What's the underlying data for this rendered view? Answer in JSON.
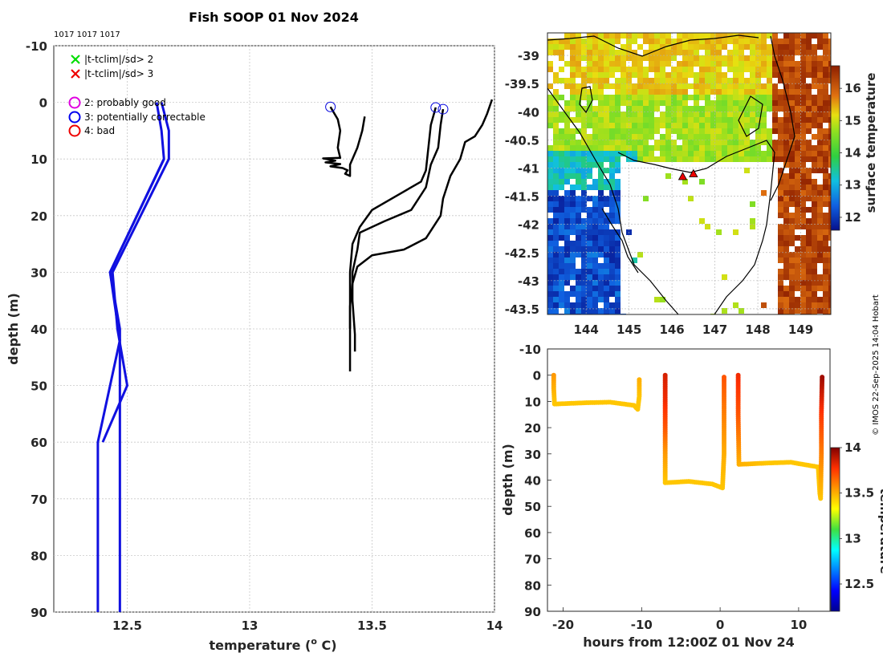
{
  "title": "Fish SOOP 01 Nov 2024",
  "ids_label": "1017 1017 1017",
  "credit": "© IMOS 22-Sep-2025 14:04 Hobart",
  "chart_data": [
    {
      "id": "profile",
      "type": "line",
      "xlabel": "temperature (",
      "xlabel_unit": "o",
      "xlabel_tail": " C)",
      "ylabel": "depth (m)",
      "xlim": [
        12.2,
        14
      ],
      "ylim": [
        -10,
        90
      ],
      "xticks": [
        12.5,
        13,
        13.5,
        14
      ],
      "xtick_labels": [
        "12.5",
        "13",
        "13.5",
        "14"
      ],
      "yticks": [
        -10,
        0,
        10,
        20,
        30,
        40,
        50,
        60,
        70,
        80,
        90
      ],
      "ytick_labels": [
        "-10",
        "0",
        "10",
        "20",
        "30",
        "40",
        "50",
        "60",
        "70",
        "80",
        "90"
      ],
      "legend": [
        {
          "marker": "x",
          "color": "#00dd00",
          "label": "|t-tclim|/sd> 2"
        },
        {
          "marker": "x",
          "color": "#ee0000",
          "label": "|t-tclim|/sd> 3"
        },
        {
          "marker": "o",
          "color": "#e000e0",
          "label": "2: probably good"
        },
        {
          "marker": "o",
          "color": "#0000ee",
          "label": "3: potentially correctable"
        },
        {
          "marker": "o",
          "color": "#ee0000",
          "label": "4: bad"
        }
      ],
      "climatology": [
        {
          "name": "clim-mean",
          "color": "#1010e0",
          "points": [
            [
              12.62,
              0
            ],
            [
              12.64,
              5
            ],
            [
              12.65,
              10
            ],
            [
              12.43,
              30
            ],
            [
              12.47,
              40
            ],
            [
              12.47,
              50
            ],
            [
              12.47,
              60
            ],
            [
              12.47,
              70
            ],
            [
              12.47,
              90
            ]
          ]
        },
        {
          "name": "clim-upper",
          "color": "#1010e0",
          "points": [
            [
              12.64,
              0
            ],
            [
              12.67,
              5
            ],
            [
              12.67,
              10
            ],
            [
              12.44,
              30
            ],
            [
              12.46,
              40
            ],
            [
              12.5,
              50
            ],
            [
              12.4,
              60
            ]
          ]
        },
        {
          "name": "clim-lower",
          "color": "#1010e0",
          "points": [
            [
              12.65,
              10
            ],
            [
              12.43,
              30
            ],
            [
              12.47,
              42
            ],
            [
              12.38,
              60
            ],
            [
              12.38,
              90
            ]
          ]
        }
      ],
      "series": [
        {
          "name": "profile-1",
          "color": "#000000",
          "flag_circle": [
            13.33,
            0.8
          ],
          "points": [
            [
              13.33,
              0.8
            ],
            [
              13.36,
              3
            ],
            [
              13.37,
              5
            ],
            [
              13.36,
              8
            ],
            [
              13.37,
              9.8
            ],
            [
              13.3,
              9.9
            ],
            [
              13.35,
              10.3
            ],
            [
              13.31,
              10.6
            ],
            [
              13.37,
              10.9
            ],
            [
              13.33,
              11.3
            ],
            [
              13.38,
              11.6
            ],
            [
              13.4,
              12
            ],
            [
              13.39,
              12.6
            ],
            [
              13.41,
              13
            ],
            [
              13.41,
              11
            ],
            [
              13.44,
              8
            ],
            [
              13.46,
              5
            ],
            [
              13.47,
              2.5
            ]
          ]
        },
        {
          "name": "profile-2",
          "color": "#000000",
          "flag_circle": [
            13.76,
            0.9
          ],
          "points": [
            [
              13.76,
              0.9
            ],
            [
              13.74,
              4
            ],
            [
              13.73,
              8
            ],
            [
              13.72,
              12
            ],
            [
              13.7,
              14
            ],
            [
              13.5,
              19
            ],
            [
              13.45,
              22
            ],
            [
              13.42,
              25
            ],
            [
              13.41,
              30
            ],
            [
              13.41,
              35
            ],
            [
              13.41,
              47.5
            ]
          ]
        },
        {
          "name": "profile-3",
          "color": "#000000",
          "flag_circle": [
            13.79,
            1.2
          ],
          "points": [
            [
              13.79,
              1.2
            ],
            [
              13.78,
              4
            ],
            [
              13.77,
              8
            ],
            [
              13.74,
              11
            ],
            [
              13.72,
              15
            ],
            [
              13.66,
              19
            ],
            [
              13.55,
              21
            ],
            [
              13.45,
              23
            ],
            [
              13.44,
              26
            ],
            [
              13.42,
              30
            ],
            [
              13.42,
              35
            ],
            [
              13.43,
              41
            ],
            [
              13.43,
              44
            ]
          ]
        },
        {
          "name": "profile-4",
          "color": "#000000",
          "flag_circle": null,
          "points": [
            [
              13.99,
              -0.5
            ],
            [
              13.97,
              2
            ],
            [
              13.95,
              4
            ],
            [
              13.92,
              6
            ],
            [
              13.88,
              7
            ],
            [
              13.86,
              10
            ],
            [
              13.82,
              13
            ],
            [
              13.79,
              17
            ],
            [
              13.78,
              20
            ],
            [
              13.72,
              24
            ],
            [
              13.63,
              26
            ],
            [
              13.5,
              27
            ],
            [
              13.44,
              29
            ],
            [
              13.42,
              32
            ],
            [
              13.41,
              36
            ],
            [
              13.41,
              40
            ]
          ]
        }
      ]
    },
    {
      "id": "map",
      "type": "heatmap",
      "xticks": [
        144,
        145,
        146,
        147,
        148,
        149
      ],
      "xtick_labels": [
        "144",
        "145",
        "146",
        "147",
        "148",
        "149"
      ],
      "xlim": [
        143.1,
        149.7
      ],
      "ylim": [
        -43.6,
        -38.6
      ],
      "yticks": [
        -39,
        -39.5,
        -40,
        -40.5,
        -41,
        -41.5,
        -42,
        -42.5,
        -43,
        -43.5
      ],
      "ytick_labels": [
        "-39",
        "-39.5",
        "-40",
        "-40.5",
        "-41",
        "-41.5",
        "-42",
        "-42.5",
        "-43",
        "-43.5"
      ],
      "colorbar_label": "surface temperature",
      "colorbar_ticks": [
        12,
        13,
        14,
        15,
        16
      ],
      "colorbar_tick_labels": [
        "12",
        "13",
        "14",
        "15",
        "16"
      ],
      "colorbar_range": [
        11.6,
        16.7
      ],
      "markers": [
        {
          "lon": 146.25,
          "lat": -41.15
        },
        {
          "lon": 146.5,
          "lat": -41.1
        }
      ]
    },
    {
      "id": "timeseries",
      "type": "scatter",
      "xlabel": "hours from 12:00Z 01 Nov 24",
      "ylabel": "depth (m)",
      "xlim": [
        -22,
        14
      ],
      "ylim": [
        -10,
        90
      ],
      "xticks": [
        -20,
        -10,
        0,
        10
      ],
      "xtick_labels": [
        "-20",
        "-10",
        "0",
        "10"
      ],
      "yticks": [
        -10,
        0,
        10,
        20,
        30,
        40,
        50,
        60,
        70,
        80,
        90
      ],
      "ytick_labels": [
        "-10",
        "0",
        "10",
        "20",
        "30",
        "40",
        "50",
        "60",
        "70",
        "80",
        "90"
      ],
      "colorbar_label": "temperature",
      "colorbar_ticks": [
        12.5,
        13,
        13.5,
        14
      ],
      "colorbar_tick_labels": [
        "12.5",
        "13",
        "13.5",
        "14"
      ],
      "colorbar_range": [
        12.2,
        14
      ],
      "tracks": [
        {
          "name": "track-1",
          "points": [
            [
              -21.2,
              0,
              13.55
            ],
            [
              -21.2,
              5,
              13.5
            ],
            [
              -21.1,
              11,
              13.45
            ],
            [
              -17,
              10.5,
              13.45
            ],
            [
              -14,
              10.3,
              13.45
            ],
            [
              -11,
              11.5,
              13.45
            ],
            [
              -10.5,
              13,
              13.45
            ],
            [
              -10.3,
              8,
              13.45
            ],
            [
              -10.3,
              1,
              13.5
            ]
          ]
        },
        {
          "name": "track-2",
          "points": [
            [
              -7,
              0,
              13.85
            ],
            [
              -7,
              10,
              13.8
            ],
            [
              -7,
              20,
              13.7
            ],
            [
              -7,
              30,
              13.55
            ],
            [
              -7,
              41,
              13.45
            ],
            [
              -4,
              40.5,
              13.45
            ],
            [
              -1,
              41.5,
              13.45
            ],
            [
              0.3,
              43,
              13.45
            ],
            [
              0.5,
              30,
              13.5
            ],
            [
              0.5,
              15,
              13.6
            ],
            [
              0.5,
              0,
              13.7
            ]
          ]
        },
        {
          "name": "track-3",
          "points": [
            [
              2.3,
              0,
              13.8
            ],
            [
              2.3,
              15,
              13.7
            ],
            [
              2.4,
              34,
              13.5
            ],
            [
              6,
              33.5,
              13.45
            ],
            [
              9,
              33.2,
              13.45
            ],
            [
              12.5,
              35,
              13.45
            ],
            [
              12.7,
              45,
              13.45
            ],
            [
              12.8,
              47,
              13.45
            ],
            [
              12.9,
              30,
              13.6
            ],
            [
              12.9,
              15,
              13.75
            ],
            [
              13,
              0,
              13.95
            ]
          ]
        }
      ]
    }
  ]
}
